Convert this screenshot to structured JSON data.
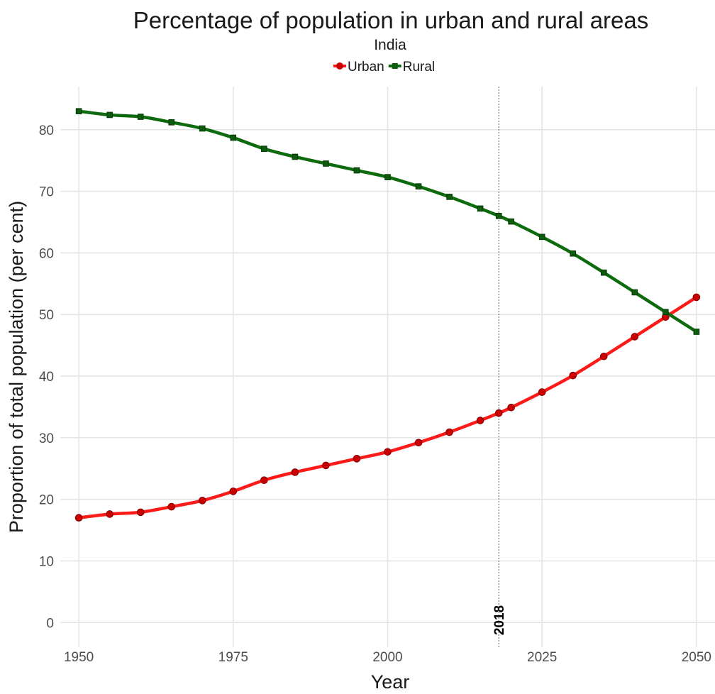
{
  "chart_data": {
    "type": "line",
    "title": "Percentage of population in urban and rural areas",
    "subtitle": "India",
    "xlabel": "Year",
    "ylabel": "Proportion of total population (per cent)",
    "xlim": [
      1947,
      2053
    ],
    "ylim": [
      -4,
      87
    ],
    "x_ticks": [
      1950,
      1975,
      2000,
      2025,
      2050
    ],
    "y_ticks": [
      0,
      10,
      20,
      30,
      40,
      50,
      60,
      70,
      80
    ],
    "grid": true,
    "legend": {
      "position": "top"
    },
    "annotations": [
      {
        "x": 2018,
        "label": "2018",
        "style": "dotted-vertical-line"
      }
    ],
    "series": [
      {
        "name": "Urban",
        "color": "#ff1a1a",
        "marker": "circle",
        "marker_color": "#cc0000",
        "x": [
          1950,
          1955,
          1960,
          1965,
          1970,
          1975,
          1980,
          1985,
          1990,
          1995,
          2000,
          2005,
          2010,
          2015,
          2018,
          2020,
          2025,
          2030,
          2035,
          2040,
          2045,
          2050
        ],
        "values": [
          17.0,
          17.6,
          17.9,
          18.8,
          19.8,
          21.3,
          23.1,
          24.4,
          25.5,
          26.6,
          27.7,
          29.2,
          30.9,
          32.8,
          34.0,
          34.9,
          37.4,
          40.1,
          43.2,
          46.4,
          49.6,
          52.8
        ]
      },
      {
        "name": "Rural",
        "color": "#0d6b0d",
        "marker": "square",
        "marker_color": "#0d5c0d",
        "x": [
          1950,
          1955,
          1960,
          1965,
          1970,
          1975,
          1980,
          1985,
          1990,
          1995,
          2000,
          2005,
          2010,
          2015,
          2018,
          2020,
          2025,
          2030,
          2035,
          2040,
          2045,
          2050
        ],
        "values": [
          83.0,
          82.4,
          82.1,
          81.2,
          80.2,
          78.7,
          76.9,
          75.6,
          74.5,
          73.4,
          72.3,
          70.8,
          69.1,
          67.2,
          66.0,
          65.1,
          62.6,
          59.9,
          56.8,
          53.6,
          50.4,
          47.2
        ]
      }
    ]
  }
}
